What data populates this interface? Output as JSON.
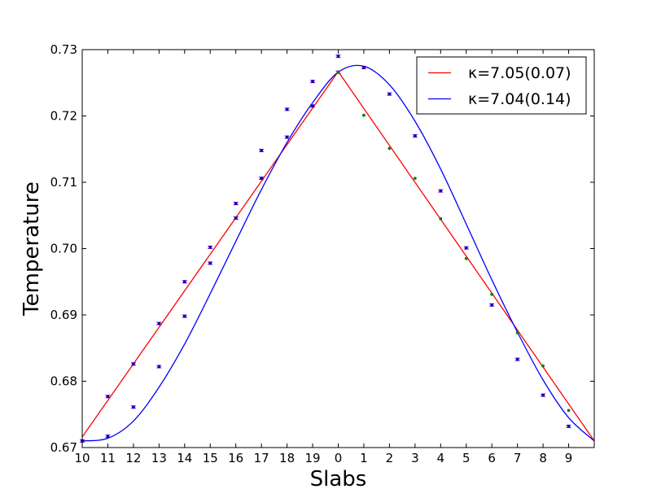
{
  "chart_data": {
    "type": "scatter",
    "xlabel": "Slabs",
    "ylabel": "Temperature",
    "x_tick_labels": [
      "10",
      "11",
      "12",
      "13",
      "14",
      "15",
      "16",
      "17",
      "18",
      "19",
      "0",
      "1",
      "2",
      "3",
      "4",
      "5",
      "6",
      "7",
      "8",
      "9"
    ],
    "y_tick_labels": [
      "0.67",
      "0.68",
      "0.69",
      "0.70",
      "0.71",
      "0.72",
      "0.73"
    ],
    "ylim": [
      0.67,
      0.73
    ],
    "xlim": [
      0,
      20
    ],
    "grid": false,
    "legend_position": "top-right",
    "colors": {
      "line_red": "#ff0000",
      "line_blue": "#0000ff",
      "marker_blue": "#0000cc",
      "marker_green": "#008000",
      "errorbar": "#8800aa"
    },
    "series": [
      {
        "label": "κ=7.05(0.07)",
        "kind": "line",
        "color": "#ff0000",
        "x": [
          0,
          10,
          20
        ],
        "y": [
          0.6716,
          0.7267,
          0.671
        ]
      },
      {
        "label": "κ=7.04(0.14)",
        "kind": "curve",
        "color": "#0000ff",
        "x": [
          0,
          1,
          2,
          3,
          4,
          5,
          6,
          7,
          8,
          9,
          10,
          11,
          12,
          13,
          14,
          15,
          16,
          17,
          18,
          19,
          20
        ],
        "y": [
          0.671,
          0.6714,
          0.674,
          0.6791,
          0.6856,
          0.6932,
          0.7011,
          0.7089,
          0.716,
          0.722,
          0.7266,
          0.7275,
          0.7247,
          0.7192,
          0.712,
          0.7037,
          0.6953,
          0.6874,
          0.6802,
          0.6745,
          0.671
        ]
      },
      {
        "name": "markers_upper",
        "kind": "markers",
        "color": "#0000cc",
        "x": [
          0,
          1,
          2,
          3,
          4,
          5,
          6,
          7,
          8,
          9,
          10,
          11,
          12,
          13,
          14,
          15,
          16,
          17,
          18,
          19
        ],
        "y": [
          0.671,
          0.6777,
          0.6826,
          0.6887,
          0.695,
          0.7002,
          0.7068,
          0.7148,
          0.721,
          0.7252,
          0.729,
          0.7273,
          0.7233,
          0.717,
          0.7087,
          0.7001,
          0.6915,
          0.6833,
          0.6779,
          0.6732
        ]
      },
      {
        "name": "markers_lower",
        "kind": "markers",
        "color": "#0000cc",
        "x": [
          1,
          2,
          3,
          4,
          5,
          6,
          7,
          8,
          9,
          10
        ],
        "y": [
          0.6717,
          0.6761,
          0.6822,
          0.6898,
          0.6978,
          0.7046,
          0.7106,
          0.7168,
          0.7215,
          0.7266
        ]
      },
      {
        "name": "markers_green",
        "kind": "markers",
        "color": "#008000",
        "x": [
          10,
          11,
          12,
          13,
          14,
          15,
          16,
          17,
          18,
          19
        ],
        "y": [
          0.7266,
          0.7201,
          0.7151,
          0.7106,
          0.7045,
          0.6985,
          0.6931,
          0.6873,
          0.6823,
          0.6756
        ]
      }
    ]
  }
}
